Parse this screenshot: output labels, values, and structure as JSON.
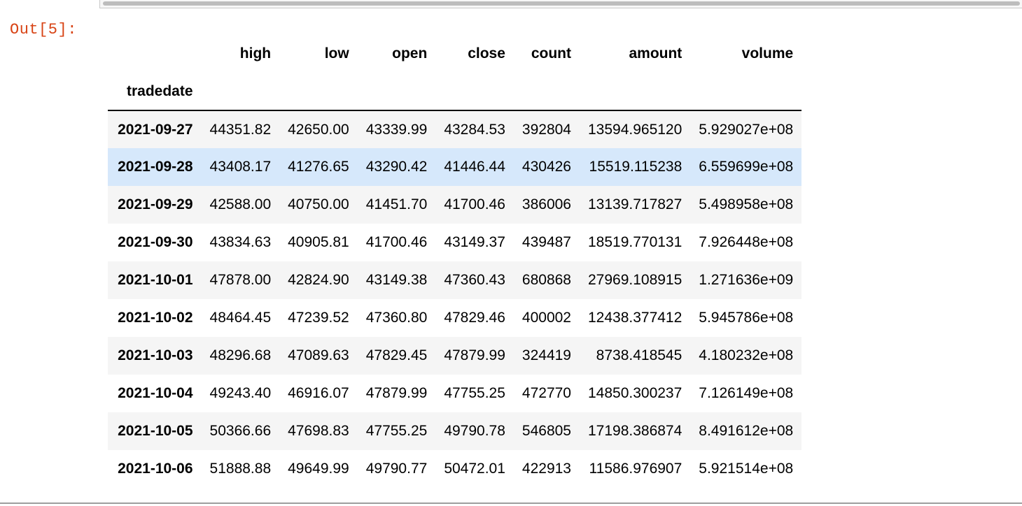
{
  "output_prompt": "Out[5]:",
  "dataframe": {
    "columns": [
      "high",
      "low",
      "open",
      "close",
      "count",
      "amount",
      "volume"
    ],
    "index_name": "tradedate",
    "hover_row": 1,
    "rows": [
      {
        "index": "2021-09-27",
        "values": [
          "44351.82",
          "42650.00",
          "43339.99",
          "43284.53",
          "392804",
          "13594.965120",
          "5.929027e+08"
        ]
      },
      {
        "index": "2021-09-28",
        "values": [
          "43408.17",
          "41276.65",
          "43290.42",
          "41446.44",
          "430426",
          "15519.115238",
          "6.559699e+08"
        ]
      },
      {
        "index": "2021-09-29",
        "values": [
          "42588.00",
          "40750.00",
          "41451.70",
          "41700.46",
          "386006",
          "13139.717827",
          "5.498958e+08"
        ]
      },
      {
        "index": "2021-09-30",
        "values": [
          "43834.63",
          "40905.81",
          "41700.46",
          "43149.37",
          "439487",
          "18519.770131",
          "7.926448e+08"
        ]
      },
      {
        "index": "2021-10-01",
        "values": [
          "47878.00",
          "42824.90",
          "43149.38",
          "47360.43",
          "680868",
          "27969.108915",
          "1.271636e+09"
        ]
      },
      {
        "index": "2021-10-02",
        "values": [
          "48464.45",
          "47239.52",
          "47360.80",
          "47829.46",
          "400002",
          "12438.377412",
          "5.945786e+08"
        ]
      },
      {
        "index": "2021-10-03",
        "values": [
          "48296.68",
          "47089.63",
          "47829.45",
          "47879.99",
          "324419",
          "8738.418545",
          "4.180232e+08"
        ]
      },
      {
        "index": "2021-10-04",
        "values": [
          "49243.40",
          "46916.07",
          "47879.99",
          "47755.25",
          "472770",
          "14850.300237",
          "7.126149e+08"
        ]
      },
      {
        "index": "2021-10-05",
        "values": [
          "50366.66",
          "47698.83",
          "47755.25",
          "49790.78",
          "546805",
          "17198.386874",
          "8.491612e+08"
        ]
      },
      {
        "index": "2021-10-06",
        "values": [
          "51888.88",
          "49649.99",
          "49790.77",
          "50472.01",
          "422913",
          "11586.976907",
          "5.921514e+08"
        ]
      }
    ]
  }
}
